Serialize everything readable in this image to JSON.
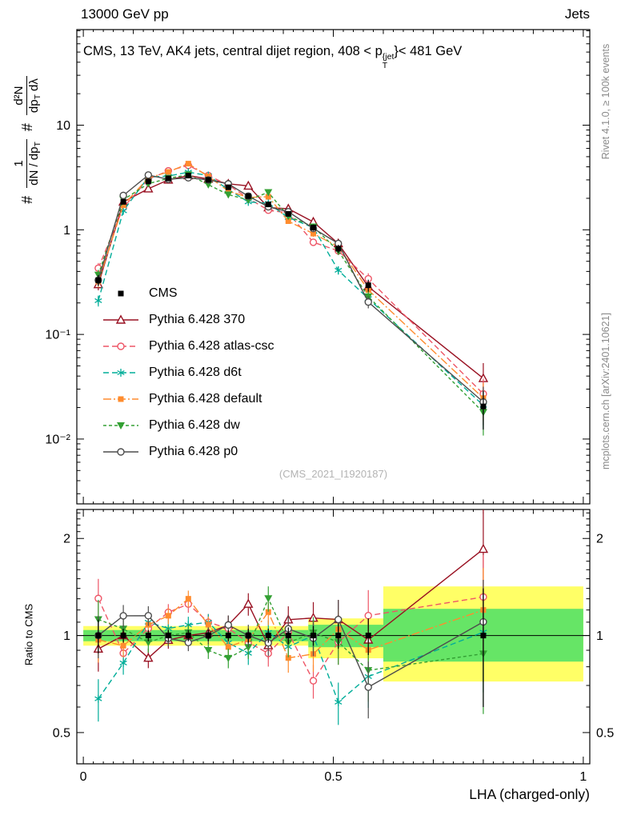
{
  "header": {
    "left": "13000 GeV pp",
    "right": "Jets"
  },
  "title": {
    "pre": "CMS, 13 TeV, AK4 jets, central dijet region, 408 < p",
    "sup": "{jet",
    "sub": "T",
    "post": "}< 481 GeV"
  },
  "ylabel": {
    "hash1": "#",
    "f1_num": "1",
    "f1_den": "dN / dp",
    "f1_den_sub": "T",
    "hash2": "#",
    "f2_num": "d²N",
    "f2_den_a": "dp",
    "f2_den_a_sub": "T",
    "f2_den_b": "dλ"
  },
  "ratio_label": "Ratio to CMS",
  "xlabel": "LHA (charged-only)",
  "watermark": "(CMS_2021_I1920187)",
  "side_notes": {
    "top": "Rivet 4.1.0, ≥ 100k events",
    "bottom": "mcplots.cern.ch [arXiv:2401.10621]"
  },
  "chart_data": {
    "type": "line",
    "title": "CMS, 13 TeV, AK4 jets, central dijet region, 408 < pT{jet} < 481 GeV",
    "xlabel": "LHA (charged-only)",
    "ylabel": "# 1/(dN/dpT) # d²N/(dpT dλ)",
    "ratio_ylabel": "Ratio to CMS",
    "xlim": [
      0,
      1
    ],
    "ylim_main": [
      0.0024,
      82
    ],
    "ylim_ratio": [
      0.4,
      2.46
    ],
    "x_ticks": [
      0,
      0.5,
      1
    ],
    "x_tick_labels": [
      "0",
      "0.5",
      "1"
    ],
    "y_ticks_main": [
      {
        "v": 10,
        "label": "10"
      },
      {
        "v": 1,
        "label": "1"
      },
      {
        "v": 0.1,
        "label": "10⁻¹"
      },
      {
        "v": 0.01,
        "label": "10⁻²"
      }
    ],
    "y_ticks_ratio": [
      {
        "v": 0.5,
        "label": "0.5"
      },
      {
        "v": 1,
        "label": "1"
      },
      {
        "v": 2,
        "label": "2"
      }
    ],
    "x": [
      0.03,
      0.08,
      0.13,
      0.17,
      0.21,
      0.25,
      0.29,
      0.33,
      0.37,
      0.41,
      0.46,
      0.51,
      0.57,
      0.8
    ],
    "rel_err_main": [
      0.12,
      0.05,
      0.04,
      0.04,
      0.04,
      0.04,
      0.04,
      0.05,
      0.05,
      0.06,
      0.07,
      0.09,
      0.13,
      0.4
    ],
    "rel_err_ratio": [
      0.15,
      0.08,
      0.07,
      0.06,
      0.06,
      0.06,
      0.07,
      0.08,
      0.09,
      0.1,
      0.12,
      0.15,
      0.2,
      0.35
    ],
    "series": [
      {
        "name": "CMS",
        "color": "#000000",
        "marker": "square-filled",
        "line": "none",
        "values": [
          0.33,
          1.85,
          2.9,
          3.1,
          3.3,
          3.0,
          2.55,
          2.1,
          1.75,
          1.42,
          1.05,
          0.66,
          0.295,
          0.0205
        ]
      },
      {
        "name": "Pythia 6.428 370",
        "color": "#991122",
        "marker": "triangle-open",
        "line": "solid",
        "values": [
          0.3,
          1.85,
          2.47,
          3.0,
          3.3,
          3.06,
          2.75,
          2.63,
          1.63,
          1.59,
          1.19,
          0.74,
          0.286,
          0.038
        ]
      },
      {
        "name": "Pythia 6.428 atlas-csc",
        "color": "#ee5566",
        "marker": "circle-open",
        "line": "dashed",
        "values": [
          0.43,
          1.63,
          3.05,
          3.66,
          4.13,
          3.3,
          2.68,
          2.0,
          1.54,
          1.45,
          0.76,
          0.63,
          0.34,
          0.027
        ]
      },
      {
        "name": "Pythia 6.428 d6t",
        "color": "#00ad99",
        "marker": "asterisk",
        "line": "dashed",
        "values": [
          0.21,
          1.52,
          3.19,
          3.26,
          3.56,
          3.3,
          2.42,
          1.85,
          1.79,
          1.31,
          1.05,
          0.41,
          0.22,
          0.021
        ]
      },
      {
        "name": "Pythia 6.428 default",
        "color": "#ff8c2e",
        "marker": "square-filled",
        "line": "dashdot",
        "values": [
          0.32,
          1.72,
          3.13,
          3.57,
          4.29,
          3.24,
          2.35,
          2.04,
          2.07,
          1.21,
          0.92,
          0.69,
          0.266,
          0.0246
        ]
      },
      {
        "name": "Pythia 6.428 dw",
        "color": "#33a033",
        "marker": "triangle-down-filled",
        "line": "shortdash",
        "values": [
          0.37,
          1.94,
          2.76,
          3.1,
          3.37,
          2.7,
          2.17,
          1.93,
          2.28,
          1.35,
          1.07,
          0.63,
          0.23,
          0.018
        ]
      },
      {
        "name": "Pythia 6.428 p0",
        "color": "#4d4d4d",
        "marker": "circle-open",
        "line": "solid",
        "values": [
          0.33,
          2.13,
          3.34,
          3.04,
          3.14,
          3.0,
          2.75,
          2.1,
          1.66,
          1.49,
          1.03,
          0.74,
          0.204,
          0.0226
        ]
      }
    ],
    "ratio_ref": 1,
    "band_colors": {
      "yellow": "#ffff66",
      "green": "#66e566"
    },
    "ratio_bands": [
      {
        "x0": 0.0,
        "x1": 0.45,
        "yellow": [
          0.93,
          1.07
        ],
        "green": [
          0.96,
          1.04
        ]
      },
      {
        "x0": 0.45,
        "x1": 0.6,
        "yellow": [
          0.85,
          1.13
        ],
        "green": [
          0.92,
          1.08
        ]
      },
      {
        "x0": 0.6,
        "x1": 1.0,
        "yellow": [
          0.72,
          1.42
        ],
        "green": [
          0.83,
          1.21
        ]
      }
    ],
    "legend_position": "middle-left",
    "grid": false,
    "y_scale_main": "log",
    "y_scale_ratio": "log"
  }
}
